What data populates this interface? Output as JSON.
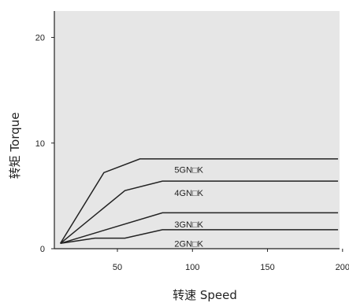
{
  "chart_data": {
    "type": "line",
    "title": "",
    "xlabel": "转速 Speed",
    "ylabel": "转矩 Torque",
    "xlim": [
      5,
      200
    ],
    "ylim": [
      0,
      23
    ],
    "x_ticks": [
      50,
      100,
      150,
      200
    ],
    "y_ticks": [
      0,
      10,
      20
    ],
    "grid": false,
    "background": "#e6e6e6",
    "line_color": "#222222",
    "series": [
      {
        "name": "5GN□K",
        "points": [
          [
            12,
            0.5
          ],
          [
            41,
            7.2
          ],
          [
            65,
            8.5
          ],
          [
            197,
            8.5
          ]
        ]
      },
      {
        "name": "4GN□K",
        "points": [
          [
            12,
            0.5
          ],
          [
            55,
            5.5
          ],
          [
            80,
            6.4
          ],
          [
            197,
            6.4
          ]
        ]
      },
      {
        "name": "3GN□K",
        "points": [
          [
            12,
            0.5
          ],
          [
            80,
            3.4
          ],
          [
            197,
            3.4
          ]
        ]
      },
      {
        "name": "2GN□K",
        "points": [
          [
            12,
            0.5
          ],
          [
            35,
            1.0
          ],
          [
            55,
            1.0
          ],
          [
            80,
            1.8
          ],
          [
            197,
            1.8
          ]
        ]
      }
    ],
    "series_label_positions": [
      [
        88,
        7.5
      ],
      [
        88,
        5.3
      ],
      [
        88,
        2.3
      ],
      [
        88,
        0.5
      ]
    ]
  }
}
